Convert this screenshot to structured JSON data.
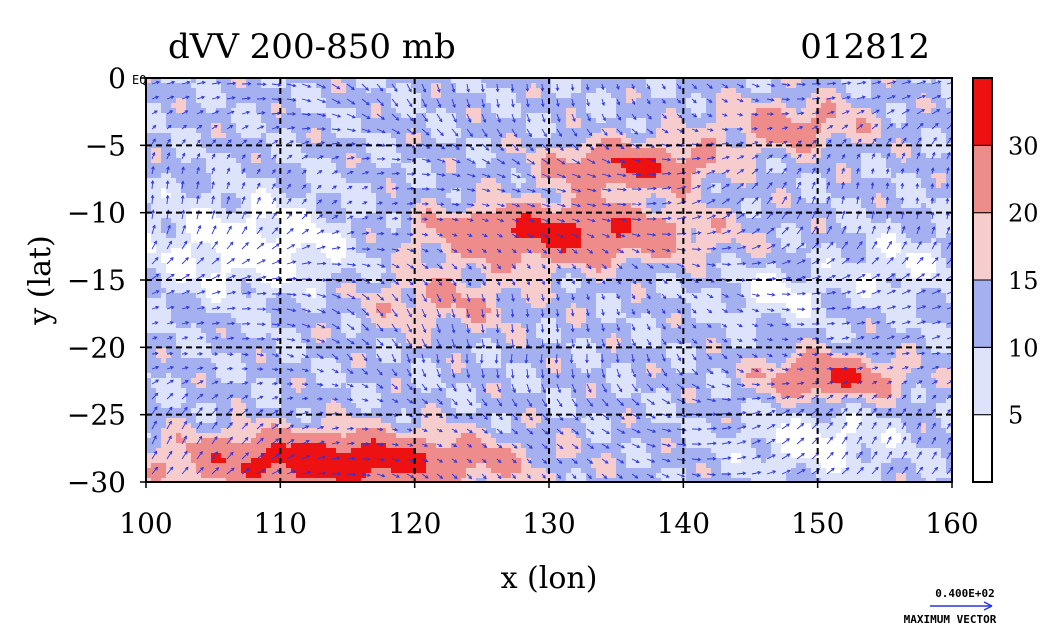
{
  "chart_data": {
    "type": "heatmap",
    "title": "dVV 200-850 mb",
    "title_right": "012812",
    "xlabel": "x (lon)",
    "ylabel": "y (lat)",
    "xlim": [
      100,
      160
    ],
    "ylim": [
      -30,
      0
    ],
    "xticks": [
      100,
      110,
      120,
      130,
      140,
      150,
      160
    ],
    "yticks": [
      0,
      -5,
      -10,
      -15,
      -20,
      -25,
      -30
    ],
    "grid": true,
    "grid_style": "dashed",
    "corner_label": "EQ",
    "colorbar": {
      "levels": [
        0,
        5,
        10,
        15,
        20,
        30,
        40
      ],
      "tick_labels": [
        5,
        10,
        15,
        20,
        30
      ],
      "colors": [
        "#ffffff",
        "#dde3fa",
        "#a4b0ef",
        "#f6cccc",
        "#ee8c8c",
        "#ee1111"
      ]
    },
    "vector_legend": {
      "magnitude": "0.400E+02",
      "label": "MAXIMUM VECTOR",
      "color": "#2a35e0"
    }
  }
}
